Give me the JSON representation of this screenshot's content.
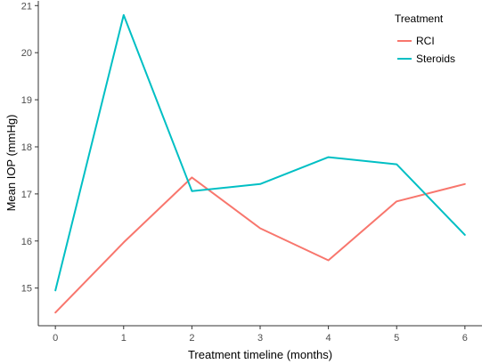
{
  "chart_data": {
    "type": "line",
    "xlabel": "Treatment timeline (months)",
    "ylabel": "Mean IOP (mmHg)",
    "x": [
      0,
      1,
      2,
      3,
      4,
      5,
      6
    ],
    "xlim": [
      -0.25,
      6.25
    ],
    "ylim": [
      14.2,
      21.1
    ],
    "yticks": [
      15,
      16,
      17,
      18,
      19,
      20,
      21
    ],
    "grid": false,
    "legend": {
      "title": "Treatment",
      "placement": "top-right"
    },
    "series": [
      {
        "name": "RCI",
        "color": "#F8766D",
        "values": [
          14.48,
          15.97,
          17.35,
          16.27,
          15.59,
          16.84,
          17.21
        ]
      },
      {
        "name": "Steroids",
        "color": "#00BFC4",
        "values": [
          14.95,
          20.8,
          17.06,
          17.21,
          17.78,
          17.63,
          16.13
        ]
      }
    ]
  }
}
